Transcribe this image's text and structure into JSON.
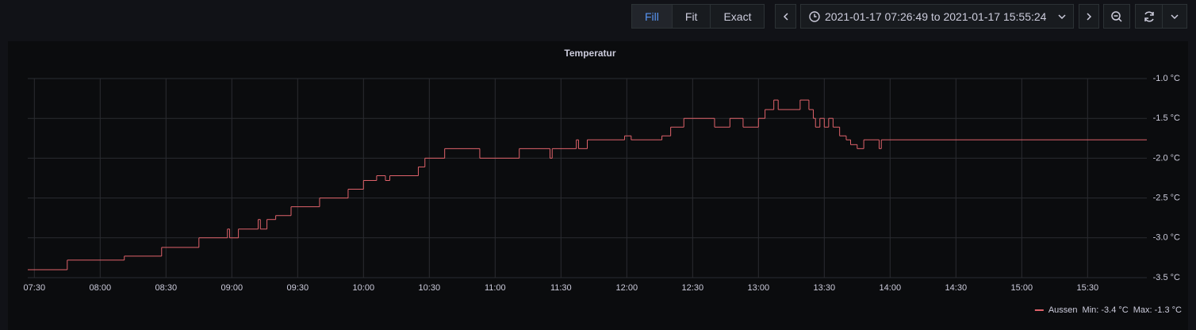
{
  "toolbar": {
    "buttons": [
      "Fill",
      "Fit",
      "Exact"
    ],
    "active": "Fill",
    "time_range": "2021-01-17 07:26:49 to 2021-01-17 15:55:24"
  },
  "chart_data": {
    "type": "line",
    "title": "Temperatur",
    "x": [
      "07:27",
      "07:45",
      "08:11",
      "08:28",
      "08:45",
      "08:58",
      "08:59",
      "09:03",
      "09:12",
      "09:13",
      "09:16",
      "09:20",
      "09:27",
      "09:40",
      "09:53",
      "10:00",
      "10:06",
      "10:10",
      "10:12",
      "10:25",
      "10:28",
      "10:37",
      "10:53",
      "11:11",
      "11:25",
      "11:26",
      "11:37",
      "11:38",
      "11:42",
      "11:59",
      "12:02",
      "12:16",
      "12:20",
      "12:26",
      "12:40",
      "12:47",
      "12:53",
      "13:00",
      "13:03",
      "13:07",
      "13:09",
      "13:19",
      "13:23",
      "13:25",
      "13:26",
      "13:28",
      "13:30",
      "13:32",
      "13:34",
      "13:37",
      "13:40",
      "13:42",
      "13:45",
      "13:48",
      "13:55",
      "13:56"
    ],
    "series": [
      {
        "name": "Aussen",
        "color": "#e0636b",
        "step": true,
        "values": [
          -3.4,
          -3.28,
          -3.23,
          -3.12,
          -3.0,
          -2.89,
          -3.0,
          -2.89,
          -2.77,
          -2.89,
          -2.77,
          -2.72,
          -2.61,
          -2.5,
          -2.39,
          -2.28,
          -2.22,
          -2.28,
          -2.22,
          -2.11,
          -2.0,
          -1.88,
          -2.0,
          -1.88,
          -2.0,
          -1.88,
          -1.77,
          -1.88,
          -1.77,
          -1.72,
          -1.77,
          -1.72,
          -1.61,
          -1.5,
          -1.61,
          -1.5,
          -1.61,
          -1.5,
          -1.39,
          -1.27,
          -1.39,
          -1.27,
          -1.39,
          -1.5,
          -1.61,
          -1.5,
          -1.61,
          -1.5,
          -1.61,
          -1.72,
          -1.77,
          -1.83,
          -1.88,
          -1.77,
          -1.88,
          -1.77
        ],
        "legend_stats": [
          "Min: -3.4 °C",
          "Max: -1.3 °C"
        ]
      }
    ],
    "xlim": [
      "07:27",
      "15:57"
    ],
    "xticks": [
      "07:30",
      "08:00",
      "08:30",
      "09:00",
      "09:30",
      "10:00",
      "10:30",
      "11:00",
      "11:30",
      "12:00",
      "12:30",
      "13:00",
      "13:30",
      "14:00",
      "14:30",
      "15:00",
      "15:30"
    ],
    "ylim": [
      -3.5,
      -1.0
    ],
    "yticks": [
      {
        "value": -3.5,
        "label": "-3.5 °C"
      },
      {
        "value": -3.0,
        "label": "-3.0 °C"
      },
      {
        "value": -2.5,
        "label": "-2.5 °C"
      },
      {
        "value": -2.0,
        "label": "-2.0 °C"
      },
      {
        "value": -1.5,
        "label": "-1.5 °C"
      },
      {
        "value": -1.0,
        "label": "-1.0 °C"
      }
    ],
    "grid": true,
    "legend": "bottom-right"
  }
}
